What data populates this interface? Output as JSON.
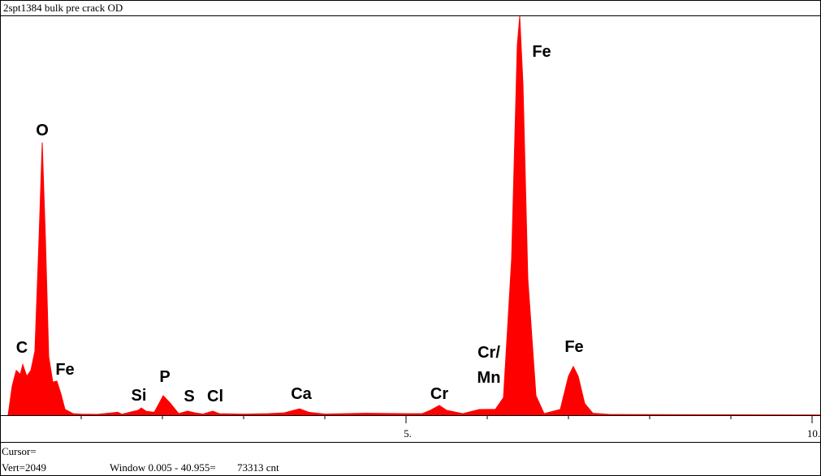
{
  "chart_data": {
    "type": "area",
    "title": "2spt1384 bulk pre crack OD",
    "color": "#ff0000",
    "x": [
      0.1,
      0.15,
      0.2,
      0.25,
      0.28,
      0.33,
      0.38,
      0.43,
      0.48,
      0.52,
      0.56,
      0.6,
      0.65,
      0.7,
      0.75,
      0.8,
      0.9,
      1.0,
      1.2,
      1.45,
      1.5,
      1.7,
      1.74,
      1.8,
      1.9,
      2.01,
      2.1,
      2.2,
      2.31,
      2.4,
      2.5,
      2.62,
      2.7,
      3.0,
      3.3,
      3.5,
      3.69,
      3.8,
      4.0,
      4.5,
      5.0,
      5.2,
      5.3,
      5.41,
      5.5,
      5.7,
      5.9,
      6.1,
      6.2,
      6.3,
      6.37,
      6.4,
      6.44,
      6.5,
      6.6,
      6.7,
      6.9,
      7.0,
      7.06,
      7.12,
      7.2,
      7.3,
      7.5,
      8.0,
      9.0,
      10.1
    ],
    "values": [
      0,
      150,
      230,
      210,
      260,
      200,
      230,
      330,
      900,
      1400,
      900,
      300,
      170,
      175,
      110,
      30,
      8,
      5,
      4,
      15,
      5,
      25,
      37,
      20,
      15,
      100,
      60,
      8,
      21,
      12,
      6,
      21,
      8,
      5,
      8,
      12,
      33,
      15,
      6,
      10,
      8,
      8,
      25,
      50,
      25,
      8,
      29,
      30,
      90,
      800,
      1900,
      2049,
      1700,
      700,
      100,
      8,
      30,
      200,
      250,
      200,
      60,
      10,
      4,
      3,
      2,
      1
    ],
    "xlim": [
      0,
      10.11
    ],
    "ylim": [
      0,
      2049
    ],
    "xticks": [
      {
        "value": 5,
        "label": "5."
      },
      {
        "value": 10,
        "label": "10."
      }
    ],
    "xminorticks": [
      1,
      2,
      3,
      4,
      6,
      7,
      8,
      9
    ],
    "annotations": [
      "C",
      "O",
      "Fe",
      "Si",
      "P",
      "S",
      "Cl",
      "Ca",
      "Cr",
      "Cr/",
      "Mn",
      "Fe",
      "Fe"
    ],
    "cursor_label": "Cursor=",
    "vert_label": "Vert=2049",
    "window_label": "Window 0.005 - 40.955=",
    "count_label": "73313 cnt"
  }
}
